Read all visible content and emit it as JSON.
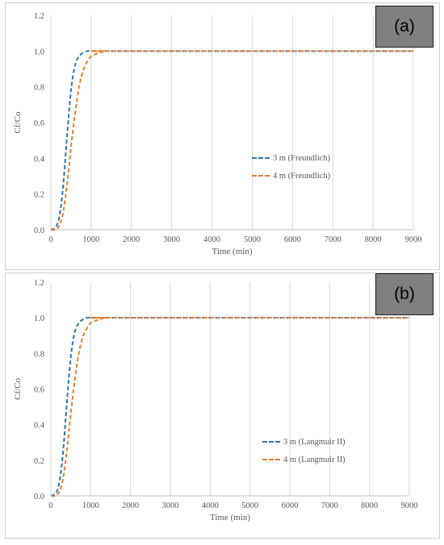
{
  "chart_data": [
    {
      "type": "line",
      "panel_label": "(a)",
      "xlabel": "Time (min)",
      "ylabel": "Cf/Co",
      "xlim": [
        0,
        9000
      ],
      "ylim": [
        0,
        1.2
      ],
      "x_ticks": [
        "0",
        "1000",
        "2000",
        "3000",
        "4000",
        "5000",
        "6000",
        "7000",
        "8000",
        "9000"
      ],
      "y_ticks": [
        "0.0",
        "0.2",
        "0.4",
        "0.6",
        "0.8",
        "1.0",
        "1.2"
      ],
      "grid": "vertical",
      "legend_position": "right",
      "series": [
        {
          "name": "3 m (Freundlich)",
          "color": "#2e75b6",
          "style": "dashed",
          "x": [
            0,
            100,
            200,
            300,
            400,
            500,
            600,
            700,
            800,
            900,
            1000,
            1200,
            1400,
            1600,
            9000
          ],
          "y": [
            0.0,
            0.01,
            0.06,
            0.23,
            0.52,
            0.78,
            0.92,
            0.97,
            0.99,
            1.0,
            1.0,
            1.0,
            1.0,
            1.0,
            1.0
          ]
        },
        {
          "name": "4 m (Freundlich)",
          "color": "#ed7d31",
          "style": "dashed",
          "x": [
            0,
            100,
            200,
            300,
            400,
            500,
            600,
            700,
            800,
            900,
            1000,
            1200,
            1400,
            1600,
            9000
          ],
          "y": [
            0.0,
            0.0,
            0.02,
            0.09,
            0.25,
            0.46,
            0.65,
            0.8,
            0.89,
            0.94,
            0.97,
            0.99,
            1.0,
            1.0,
            1.0
          ]
        }
      ]
    },
    {
      "type": "line",
      "panel_label": "(b)",
      "xlabel": "Time (min)",
      "ylabel": "Cf/Co",
      "xlim": [
        0,
        9000
      ],
      "ylim": [
        0,
        1.2
      ],
      "x_ticks": [
        "0",
        "1000",
        "2000",
        "3000",
        "4000",
        "5000",
        "6000",
        "7000",
        "8000",
        "9000"
      ],
      "y_ticks": [
        "0.0",
        "0.2",
        "0.4",
        "0.6",
        "0.8",
        "1.0",
        "1.2"
      ],
      "grid": "vertical",
      "legend_position": "bottom-right",
      "series": [
        {
          "name": "3 m (Langmuir II)",
          "color": "#2e75b6",
          "style": "dashed",
          "x": [
            0,
            100,
            200,
            300,
            400,
            500,
            600,
            700,
            800,
            900,
            1000,
            1200,
            1400,
            1600,
            9000
          ],
          "y": [
            0.0,
            0.01,
            0.06,
            0.23,
            0.52,
            0.78,
            0.92,
            0.97,
            0.99,
            1.0,
            1.0,
            1.0,
            1.0,
            1.0,
            1.0
          ]
        },
        {
          "name": "4 m (Langmuir II)",
          "color": "#ed7d31",
          "style": "dashed",
          "x": [
            0,
            100,
            200,
            300,
            400,
            500,
            600,
            700,
            800,
            900,
            1000,
            1200,
            1400,
            1600,
            9000
          ],
          "y": [
            0.0,
            0.0,
            0.02,
            0.09,
            0.25,
            0.46,
            0.65,
            0.8,
            0.89,
            0.94,
            0.97,
            0.99,
            1.0,
            1.0,
            1.0
          ]
        }
      ]
    }
  ]
}
